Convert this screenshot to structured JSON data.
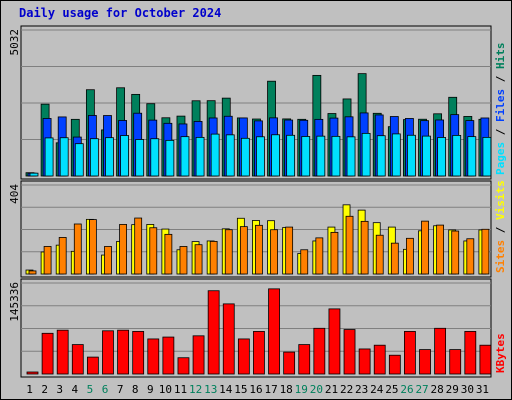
{
  "chart_data": {
    "type": "bar",
    "title": "Daily usage for October 2024",
    "days": [
      "1",
      "2",
      "3",
      "4",
      "5",
      "6",
      "7",
      "8",
      "9",
      "10",
      "11",
      "12",
      "13",
      "14",
      "15",
      "16",
      "17",
      "18",
      "19",
      "20",
      "21",
      "22",
      "23",
      "24",
      "25",
      "26",
      "27",
      "28",
      "29",
      "30",
      "31"
    ],
    "weekend_days": [
      "5",
      "6",
      "12",
      "13",
      "19",
      "20",
      "26",
      "27"
    ],
    "colors": {
      "hits": "#00805c",
      "files": "#0040ff",
      "pages": "#00e0ff",
      "visits": "#ffff00",
      "sites": "#ff8000",
      "kbytes": "#ff0000",
      "weekend_label": "#00805c",
      "weekday_label": "#000000"
    },
    "panels": [
      {
        "id": "hits-files-pages",
        "max_label": "5032",
        "max": 5032,
        "legend": [
          {
            "text": "Pages",
            "color": "#00e0ff"
          },
          {
            "text": " / ",
            "color": "#000000"
          },
          {
            "text": "Files",
            "color": "#0040ff"
          },
          {
            "text": " / ",
            "color": "#000000"
          },
          {
            "text": "Hits",
            "color": "#00805c"
          }
        ],
        "series": [
          {
            "name": "Hits",
            "color": "#00805c",
            "values": [
              114,
              2476,
              1144,
              1953,
              2974,
              1589,
              3041,
              2813,
              2491,
              2007,
              2064,
              2593,
              2596,
              2684,
              2002,
              1964,
              3267,
              1968,
              1954,
              3468,
              2153,
              2656,
              3528,
              2161,
              1700,
              1944,
              1957,
              2144,
              2713,
              2053,
              1954
            ]
          },
          {
            "name": "Files",
            "color": "#0040ff",
            "values": [
              98,
              1983,
              2036,
              1342,
              2087,
              2084,
              1914,
              2164,
              1926,
              1816,
              1794,
              1881,
              2000,
              2059,
              2001,
              1900,
              2004,
              1929,
              1920,
              1952,
              1996,
              2040,
              2174,
              2104,
              2050,
              1983,
              1908,
              1931,
              2115,
              1910,
              2000
            ]
          },
          {
            "name": "Pages",
            "color": "#00e0ff",
            "values": [
              98,
              1313,
              1319,
              1114,
              1286,
              1321,
              1395,
              1258,
              1285,
              1228,
              1356,
              1331,
              1444,
              1419,
              1299,
              1352,
              1421,
              1403,
              1362,
              1373,
              1366,
              1350,
              1469,
              1389,
              1451,
              1404,
              1375,
              1328,
              1399,
              1357,
              1331
            ]
          }
        ]
      },
      {
        "id": "visits-sites",
        "max_label": "404",
        "max": 404,
        "legend": [
          {
            "text": "Sites",
            "color": "#ff8000"
          },
          {
            "text": " / ",
            "color": "#000000"
          },
          {
            "text": "Visits",
            "color": "#ffff00"
          }
        ],
        "series": [
          {
            "name": "Visits",
            "color": "#ffff00",
            "values": [
              18,
              100,
              131,
              103,
              248,
              86,
              148,
              224,
              225,
              204,
              110,
              147,
              150,
              205,
              253,
              243,
              242,
              211,
              93,
              150,
              213,
              314,
              290,
              233,
              213,
              112,
              196,
              219,
              200,
              150,
              200
            ]
          },
          {
            "name": "Sites",
            "color": "#ff8000",
            "values": [
              14,
              125,
              166,
              227,
              247,
              125,
              225,
              254,
              210,
              180,
              125,
              133,
              148,
              201,
              215,
              221,
              201,
              213,
              110,
              164,
              189,
              262,
              239,
              176,
              140,
              162,
              240,
              222,
              195,
              160,
              203
            ]
          }
        ]
      },
      {
        "id": "kbytes",
        "max_label": "145336",
        "max": 145336,
        "legend": [
          {
            "text": "KBytes",
            "color": "#ff0000"
          }
        ],
        "series": [
          {
            "name": "KBytes",
            "color": "#ff0000",
            "values": [
              1560,
              65000,
              70000,
              47000,
              27000,
              69000,
              70000,
              68000,
              56000,
              59000,
              26000,
              61000,
              133000,
              112000,
              56000,
              68000,
              136000,
              35000,
              47000,
              73000,
              104000,
              71000,
              40000,
              46000,
              30000,
              68000,
              39000,
              73000,
              39000,
              68000,
              46000
            ]
          }
        ]
      }
    ]
  }
}
